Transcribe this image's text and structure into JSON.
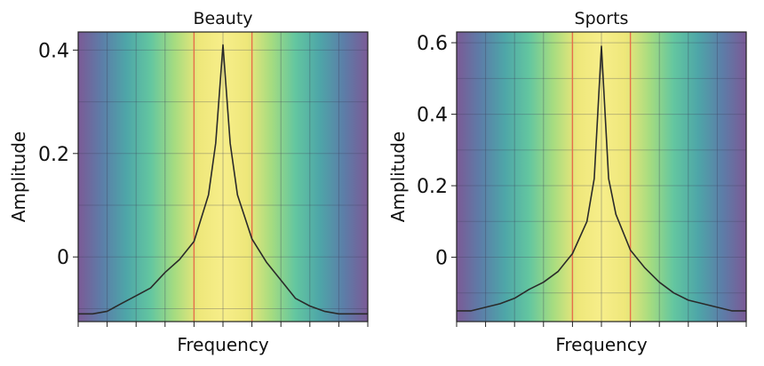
{
  "chart_data": [
    {
      "type": "line",
      "title": "Beauty",
      "xlabel": "Frequency",
      "ylabel": "Amplitude",
      "ylim": [
        -0.125,
        0.435
      ],
      "yticks": [
        0,
        0.2,
        0.4
      ],
      "ytick_labels": [
        "0",
        "0.2",
        "0.4"
      ],
      "x_tick_count": 11,
      "x": [
        -1.0,
        -0.9,
        -0.8,
        -0.7,
        -0.6,
        -0.5,
        -0.4,
        -0.3,
        -0.2,
        -0.1,
        -0.05,
        0.0,
        0.05,
        0.1,
        0.2,
        0.3,
        0.4,
        0.5,
        0.6,
        0.7,
        0.8,
        0.9,
        1.0
      ],
      "values": [
        -0.11,
        -0.11,
        -0.105,
        -0.09,
        -0.075,
        -0.06,
        -0.03,
        -0.005,
        0.03,
        0.12,
        0.22,
        0.41,
        0.22,
        0.12,
        0.035,
        -0.01,
        -0.045,
        -0.08,
        -0.095,
        -0.105,
        -0.11,
        -0.11,
        -0.11
      ],
      "band_lines": [
        -0.2,
        0.2
      ],
      "band_line_color": "#e8704a",
      "line_color": "#2a2a2a",
      "background_colormap": [
        "#7b5a96",
        "#5c7ea8",
        "#4ea6a8",
        "#63c6a0",
        "#a6dc80",
        "#eee77a",
        "#f7ee8a",
        "#eee77a",
        "#a6dc80",
        "#63c6a0",
        "#4ea6a8",
        "#5c7ea8",
        "#7b5a96"
      ]
    },
    {
      "type": "line",
      "title": "Sports",
      "xlabel": "Frequency",
      "ylabel": "Amplitude",
      "ylim": [
        -0.18,
        0.63
      ],
      "yticks": [
        0,
        0.2,
        0.4,
        0.6
      ],
      "ytick_labels": [
        "0",
        "0.2",
        "0.4",
        "0.6"
      ],
      "x_tick_count": 11,
      "x": [
        -1.0,
        -0.9,
        -0.8,
        -0.7,
        -0.6,
        -0.5,
        -0.4,
        -0.3,
        -0.2,
        -0.1,
        -0.05,
        0.0,
        0.05,
        0.1,
        0.2,
        0.3,
        0.4,
        0.5,
        0.6,
        0.7,
        0.8,
        0.9,
        1.0
      ],
      "values": [
        -0.15,
        -0.15,
        -0.14,
        -0.13,
        -0.115,
        -0.09,
        -0.07,
        -0.04,
        0.01,
        0.1,
        0.22,
        0.59,
        0.22,
        0.12,
        0.02,
        -0.03,
        -0.07,
        -0.1,
        -0.12,
        -0.13,
        -0.14,
        -0.15,
        -0.15
      ],
      "band_lines": [
        -0.2,
        0.2
      ],
      "band_line_color": "#e8704a",
      "line_color": "#2a2a2a",
      "background_colormap": [
        "#7b5a96",
        "#5c7ea8",
        "#4ea6a8",
        "#63c6a0",
        "#a6dc80",
        "#eee77a",
        "#f7ee8a",
        "#eee77a",
        "#a6dc80",
        "#63c6a0",
        "#4ea6a8",
        "#5c7ea8",
        "#7b5a96"
      ]
    }
  ]
}
